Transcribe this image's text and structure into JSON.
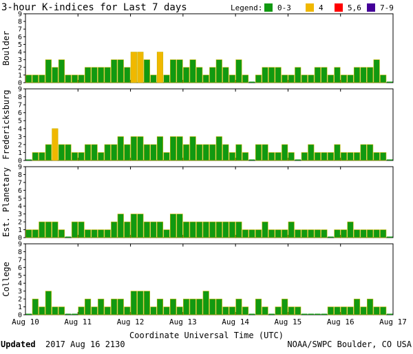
{
  "title": "3-hour K-indices for Last 7 days",
  "legend": {
    "label": "Legend:",
    "items": [
      {
        "label": "0-3",
        "color": "#119911"
      },
      {
        "label": "4",
        "color": "#f0b800"
      },
      {
        "label": "5,6",
        "color": "#ff0000"
      },
      {
        "label": "7-9",
        "color": "#440099"
      }
    ]
  },
  "footer": {
    "updated_label": "Updated",
    "updated_value": "2017 Aug 16 2130",
    "credit": "NOAA/SWPC Boulder, CO USA"
  },
  "chart_data": [
    {
      "type": "bar",
      "ylabel": "Boulder",
      "ylim": [
        0,
        9
      ],
      "yticks": [
        0,
        1,
        2,
        3,
        4,
        5,
        6,
        7,
        8,
        9
      ],
      "xlabel": "Coordinate Universal Time (UTC)",
      "xticks": [
        "Aug 10",
        "Aug 11",
        "Aug 12",
        "Aug 13",
        "Aug 14",
        "Aug 15",
        "Aug 16",
        "Aug 17"
      ],
      "values": [
        1,
        1,
        1,
        3,
        2,
        3,
        1,
        1,
        1,
        2,
        2,
        2,
        2,
        3,
        3,
        2,
        4,
        4,
        3,
        1,
        4,
        1,
        3,
        3,
        2,
        3,
        2,
        1,
        2,
        3,
        2,
        1,
        3,
        1,
        0,
        1,
        2,
        2,
        2,
        1,
        1,
        2,
        1,
        1,
        2,
        2,
        1,
        2,
        1,
        1,
        2,
        2,
        2,
        3,
        1,
        0
      ]
    },
    {
      "type": "bar",
      "ylabel": "Fredericksburg",
      "ylim": [
        0,
        9
      ],
      "yticks": [
        0,
        1,
        2,
        3,
        4,
        5,
        6,
        7,
        8,
        9
      ],
      "values": [
        0,
        1,
        1,
        2,
        4,
        2,
        2,
        1,
        1,
        2,
        2,
        1,
        2,
        2,
        3,
        2,
        3,
        3,
        2,
        2,
        3,
        1,
        3,
        3,
        2,
        3,
        2,
        2,
        2,
        3,
        2,
        1,
        2,
        1,
        0,
        2,
        2,
        1,
        1,
        2,
        1,
        0,
        1,
        2,
        1,
        1,
        1,
        2,
        1,
        1,
        1,
        2,
        2,
        1,
        1,
        0
      ]
    },
    {
      "type": "bar",
      "ylabel": "Est. Planetary",
      "ylim": [
        0,
        9
      ],
      "yticks": [
        0,
        1,
        2,
        3,
        4,
        5,
        6,
        7,
        8,
        9
      ],
      "values": [
        1,
        1,
        2,
        2,
        2,
        1,
        0,
        2,
        2,
        1,
        1,
        1,
        1,
        2,
        3,
        2,
        3,
        3,
        2,
        2,
        2,
        1,
        3,
        3,
        2,
        2,
        2,
        2,
        2,
        2,
        2,
        2,
        2,
        1,
        1,
        1,
        2,
        1,
        1,
        1,
        2,
        1,
        1,
        1,
        1,
        1,
        0,
        1,
        1,
        2,
        1,
        1,
        1,
        1,
        1,
        0
      ]
    },
    {
      "type": "bar",
      "ylabel": "College",
      "ylim": [
        0,
        9
      ],
      "yticks": [
        0,
        1,
        2,
        3,
        4,
        5,
        6,
        7,
        8,
        9
      ],
      "values": [
        0,
        2,
        1,
        3,
        1,
        1,
        0,
        0,
        1,
        2,
        1,
        2,
        1,
        2,
        2,
        1,
        3,
        3,
        3,
        1,
        2,
        1,
        2,
        1,
        2,
        2,
        2,
        3,
        2,
        2,
        1,
        1,
        2,
        1,
        0,
        2,
        1,
        0,
        1,
        2,
        1,
        1,
        0,
        0,
        0,
        0,
        1,
        1,
        1,
        1,
        2,
        1,
        2,
        1,
        1,
        0
      ]
    }
  ]
}
